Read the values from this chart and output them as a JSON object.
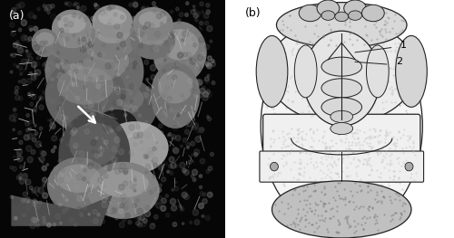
{
  "fig_width": 5.0,
  "fig_height": 2.63,
  "dpi": 100,
  "panel_a_label": "(a)",
  "panel_b_label": "(b)",
  "label_1": "1",
  "label_2": "2",
  "bg_color": "#ffffff",
  "panel_a_bg": "#050505",
  "panel_b_bg": "#ffffff",
  "border_color": "#000000",
  "label_fontsize": 9,
  "number_fontsize": 8,
  "arrow_color": "#ffffff",
  "sem_base_color": "#404040",
  "sem_mid_color": "#707070",
  "sem_light_color": "#a0a0a0"
}
